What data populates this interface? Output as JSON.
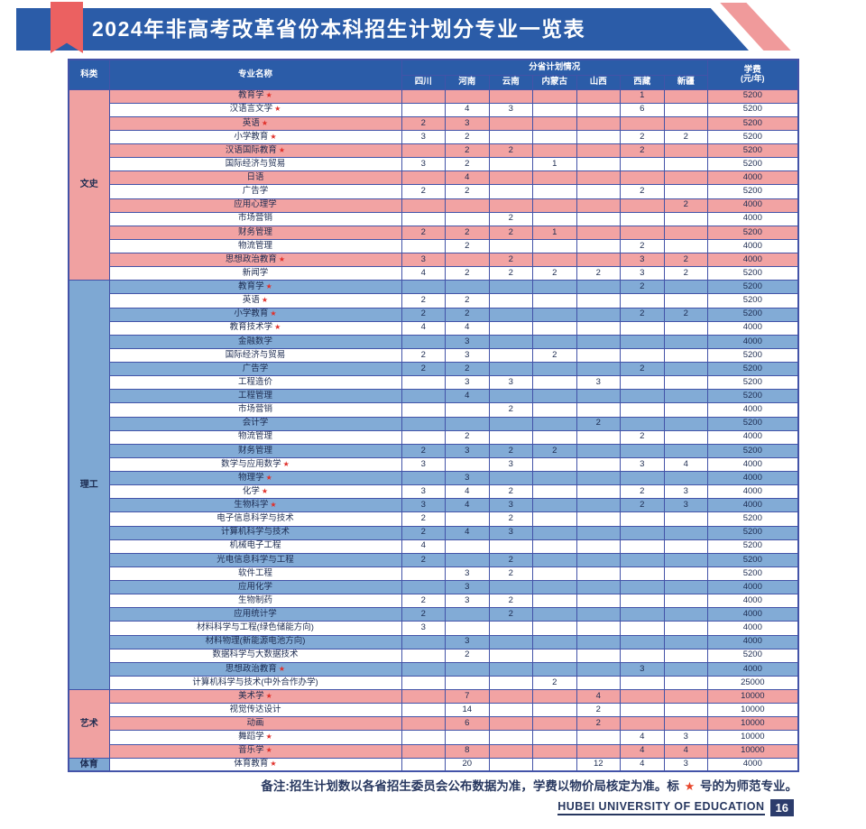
{
  "title": "2024年非高考改革省份本科招生计划分专业一览表",
  "colors": {
    "banner_blue": "#2b5ca8",
    "ribbon_red": "#eb6161",
    "stripe_pink": "#f09a9b",
    "row_pink": "#f2a3a3",
    "row_blue": "#82abd6",
    "border_blue": "#4353a8",
    "star_red": "#e0302a",
    "text_navy": "#1c2b50"
  },
  "table": {
    "header": {
      "category": "科类",
      "major": "专业名称",
      "plan_group": "分省计划情况",
      "provinces": [
        "四川",
        "河南",
        "云南",
        "内蒙古",
        "山西",
        "西藏",
        "新疆"
      ],
      "tuition_line1": "学费",
      "tuition_line2": "(元/年)"
    },
    "sections": [
      {
        "category": "文史",
        "theme": "pink",
        "rows": [
          {
            "major": "教育学",
            "star": true,
            "values": [
              "",
              "",
              "",
              "",
              "",
              "1",
              ""
            ],
            "tuition": "5200"
          },
          {
            "major": "汉语言文学",
            "star": true,
            "values": [
              "",
              "4",
              "3",
              "",
              "",
              "6",
              ""
            ],
            "tuition": "5200"
          },
          {
            "major": "英语",
            "star": true,
            "values": [
              "2",
              "3",
              "",
              "",
              "",
              "",
              ""
            ],
            "tuition": "5200"
          },
          {
            "major": "小学教育",
            "star": true,
            "values": [
              "3",
              "2",
              "",
              "",
              "",
              "2",
              "2"
            ],
            "tuition": "5200"
          },
          {
            "major": "汉语国际教育",
            "star": true,
            "values": [
              "",
              "2",
              "2",
              "",
              "",
              "2",
              ""
            ],
            "tuition": "5200"
          },
          {
            "major": "国际经济与贸易",
            "star": false,
            "values": [
              "3",
              "2",
              "",
              "1",
              "",
              "",
              ""
            ],
            "tuition": "5200"
          },
          {
            "major": "日语",
            "star": false,
            "values": [
              "",
              "4",
              "",
              "",
              "",
              "",
              ""
            ],
            "tuition": "4000"
          },
          {
            "major": "广告学",
            "star": false,
            "values": [
              "2",
              "2",
              "",
              "",
              "",
              "2",
              ""
            ],
            "tuition": "5200"
          },
          {
            "major": "应用心理学",
            "star": false,
            "values": [
              "",
              "",
              "",
              "",
              "",
              "",
              "2"
            ],
            "tuition": "4000"
          },
          {
            "major": "市场营销",
            "star": false,
            "values": [
              "",
              "",
              "2",
              "",
              "",
              "",
              ""
            ],
            "tuition": "4000"
          },
          {
            "major": "财务管理",
            "star": false,
            "values": [
              "2",
              "2",
              "2",
              "1",
              "",
              "",
              ""
            ],
            "tuition": "5200"
          },
          {
            "major": "物流管理",
            "star": false,
            "values": [
              "",
              "2",
              "",
              "",
              "",
              "2",
              ""
            ],
            "tuition": "4000"
          },
          {
            "major": "思想政治教育",
            "star": true,
            "values": [
              "3",
              "",
              "2",
              "",
              "",
              "3",
              "2"
            ],
            "tuition": "4000"
          },
          {
            "major": "新闻学",
            "star": false,
            "values": [
              "4",
              "2",
              "2",
              "2",
              "2",
              "3",
              "2"
            ],
            "tuition": "5200"
          }
        ]
      },
      {
        "category": "理工",
        "theme": "blue",
        "rows": [
          {
            "major": "教育学",
            "star": true,
            "values": [
              "",
              "",
              "",
              "",
              "",
              "2",
              ""
            ],
            "tuition": "5200"
          },
          {
            "major": "英语",
            "star": true,
            "values": [
              "2",
              "2",
              "",
              "",
              "",
              "",
              ""
            ],
            "tuition": "5200"
          },
          {
            "major": "小学教育",
            "star": true,
            "values": [
              "2",
              "2",
              "",
              "",
              "",
              "2",
              "2"
            ],
            "tuition": "5200"
          },
          {
            "major": "教育技术学",
            "star": true,
            "values": [
              "4",
              "4",
              "",
              "",
              "",
              "",
              ""
            ],
            "tuition": "4000"
          },
          {
            "major": "金融数学",
            "star": false,
            "values": [
              "",
              "3",
              "",
              "",
              "",
              "",
              ""
            ],
            "tuition": "4000"
          },
          {
            "major": "国际经济与贸易",
            "star": false,
            "values": [
              "2",
              "3",
              "",
              "2",
              "",
              "",
              ""
            ],
            "tuition": "5200"
          },
          {
            "major": "广告学",
            "star": false,
            "values": [
              "2",
              "2",
              "",
              "",
              "",
              "2",
              ""
            ],
            "tuition": "5200"
          },
          {
            "major": "工程造价",
            "star": false,
            "values": [
              "",
              "3",
              "3",
              "",
              "3",
              "",
              ""
            ],
            "tuition": "5200"
          },
          {
            "major": "工程管理",
            "star": false,
            "values": [
              "",
              "4",
              "",
              "",
              "",
              "",
              ""
            ],
            "tuition": "5200"
          },
          {
            "major": "市场营销",
            "star": false,
            "values": [
              "",
              "",
              "2",
              "",
              "",
              "",
              ""
            ],
            "tuition": "4000"
          },
          {
            "major": "会计学",
            "star": false,
            "values": [
              "",
              "",
              "",
              "",
              "2",
              "",
              ""
            ],
            "tuition": "5200"
          },
          {
            "major": "物流管理",
            "star": false,
            "values": [
              "",
              "2",
              "",
              "",
              "",
              "2",
              ""
            ],
            "tuition": "4000"
          },
          {
            "major": "财务管理",
            "star": false,
            "values": [
              "2",
              "3",
              "2",
              "2",
              "",
              "",
              ""
            ],
            "tuition": "5200"
          },
          {
            "major": "数学与应用数学",
            "star": true,
            "values": [
              "3",
              "",
              "3",
              "",
              "",
              "3",
              "4"
            ],
            "tuition": "4000"
          },
          {
            "major": "物理学",
            "star": true,
            "values": [
              "",
              "3",
              "",
              "",
              "",
              "",
              ""
            ],
            "tuition": "4000"
          },
          {
            "major": "化学",
            "star": true,
            "values": [
              "3",
              "4",
              "2",
              "",
              "",
              "2",
              "3"
            ],
            "tuition": "4000"
          },
          {
            "major": "生物科学",
            "star": true,
            "values": [
              "3",
              "4",
              "3",
              "",
              "",
              "2",
              "3"
            ],
            "tuition": "4000"
          },
          {
            "major": "电子信息科学与技术",
            "star": false,
            "values": [
              "2",
              "",
              "2",
              "",
              "",
              "",
              ""
            ],
            "tuition": "5200"
          },
          {
            "major": "计算机科学与技术",
            "star": false,
            "values": [
              "2",
              "4",
              "3",
              "",
              "",
              "",
              ""
            ],
            "tuition": "5200"
          },
          {
            "major": "机械电子工程",
            "star": false,
            "values": [
              "4",
              "",
              "",
              "",
              "",
              "",
              ""
            ],
            "tuition": "5200"
          },
          {
            "major": "光电信息科学与工程",
            "star": false,
            "values": [
              "2",
              "",
              "2",
              "",
              "",
              "",
              ""
            ],
            "tuition": "5200"
          },
          {
            "major": "软件工程",
            "star": false,
            "values": [
              "",
              "3",
              "2",
              "",
              "",
              "",
              ""
            ],
            "tuition": "5200"
          },
          {
            "major": "应用化学",
            "star": false,
            "values": [
              "",
              "3",
              "",
              "",
              "",
              "",
              ""
            ],
            "tuition": "4000"
          },
          {
            "major": "生物制药",
            "star": false,
            "values": [
              "2",
              "3",
              "2",
              "",
              "",
              "",
              ""
            ],
            "tuition": "4000"
          },
          {
            "major": "应用统计学",
            "star": false,
            "values": [
              "2",
              "",
              "2",
              "",
              "",
              "",
              ""
            ],
            "tuition": "4000"
          },
          {
            "major": "材料科学与工程(绿色储能方向)",
            "star": false,
            "values": [
              "3",
              "",
              "",
              "",
              "",
              "",
              ""
            ],
            "tuition": "4000"
          },
          {
            "major": "材料物理(新能源电池方向)",
            "star": false,
            "values": [
              "",
              "3",
              "",
              "",
              "",
              "",
              ""
            ],
            "tuition": "4000"
          },
          {
            "major": "数据科学与大数据技术",
            "star": false,
            "values": [
              "",
              "2",
              "",
              "",
              "",
              "",
              ""
            ],
            "tuition": "5200"
          },
          {
            "major": "思想政治教育",
            "star": true,
            "values": [
              "",
              "",
              "",
              "",
              "",
              "3",
              ""
            ],
            "tuition": "4000"
          },
          {
            "major": "计算机科学与技术(中外合作办学)",
            "star": false,
            "values": [
              "",
              "",
              "",
              "2",
              "",
              "",
              ""
            ],
            "tuition": "25000"
          }
        ]
      },
      {
        "category": "艺术",
        "theme": "pink",
        "rows": [
          {
            "major": "美术学",
            "star": true,
            "values": [
              "",
              "7",
              "",
              "",
              "4",
              "",
              ""
            ],
            "tuition": "10000"
          },
          {
            "major": "视觉传达设计",
            "star": false,
            "values": [
              "",
              "14",
              "",
              "",
              "2",
              "",
              ""
            ],
            "tuition": "10000"
          },
          {
            "major": "动画",
            "star": false,
            "values": [
              "",
              "6",
              "",
              "",
              "2",
              "",
              ""
            ],
            "tuition": "10000"
          },
          {
            "major": "舞蹈学",
            "star": true,
            "values": [
              "",
              "",
              "",
              "",
              "",
              "4",
              "3"
            ],
            "tuition": "10000"
          },
          {
            "major": "音乐学",
            "star": true,
            "values": [
              "",
              "8",
              "",
              "",
              "",
              "4",
              "4"
            ],
            "tuition": "10000"
          }
        ]
      },
      {
        "category": "体育",
        "theme": "blue",
        "rows": [
          {
            "major": "体育教育",
            "star": true,
            "values": [
              "",
              "20",
              "",
              "",
              "12",
              "4",
              "3"
            ],
            "tuition": "4000"
          }
        ]
      }
    ]
  },
  "note": {
    "prefix": "备注:招生计划数以各省招生委员会公布数据为准，学费以物价局核定为准。标 ",
    "star": "★",
    "suffix": " 号的为师范专业。"
  },
  "footer": {
    "university": "HUBEI UNIVERSITY OF EDUCATION",
    "page": "16"
  }
}
